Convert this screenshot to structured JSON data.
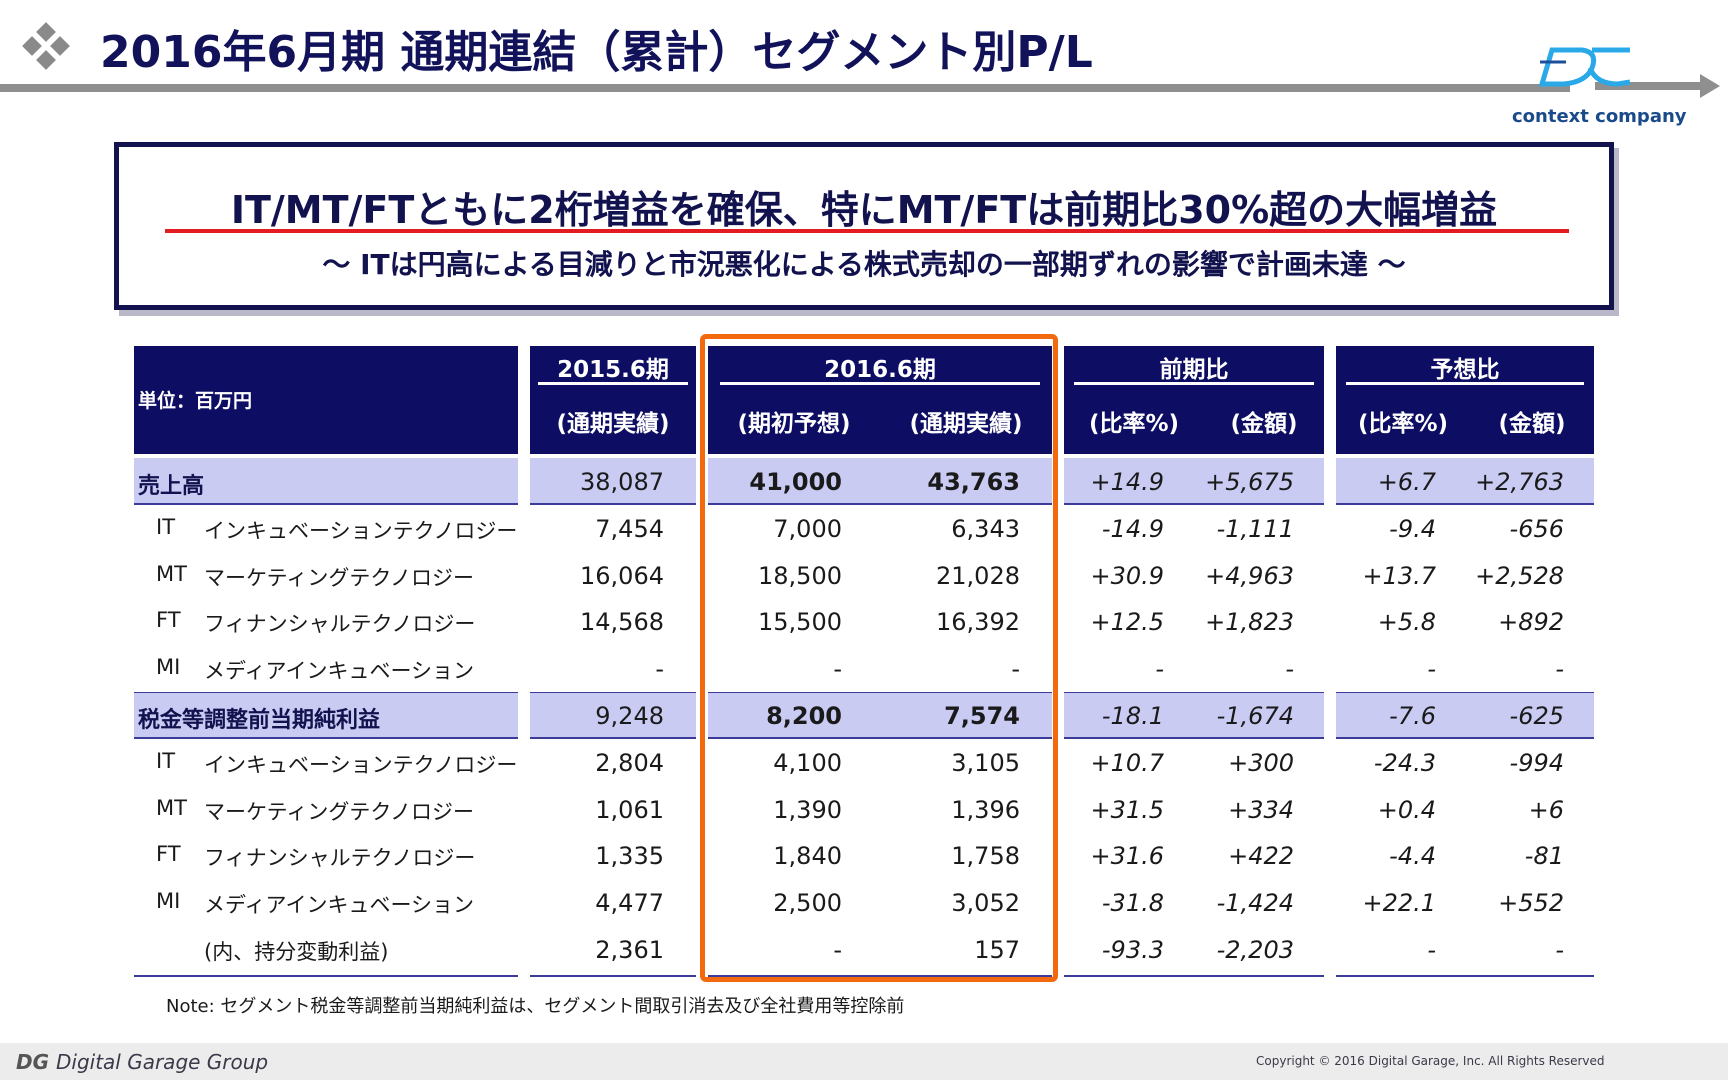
{
  "title": "2016年6月期 通期連結（累計）セグメント別P/L",
  "logo": {
    "text": "context company",
    "icon": "dg-logo-icon"
  },
  "headline": {
    "main": "IT/MT/FTともに2桁増益を確保、特にMT/FTは前期比30%超の大幅増益",
    "sub": "～ ITは円高による目減りと市況悪化による株式売却の一部期ずれの影響で計画未達 ～"
  },
  "table": {
    "unit_label": "単位：百万円",
    "groups": {
      "fy2015": "2015.6期",
      "fy2016": "2016.6期",
      "yoy": "前期比",
      "vs_forecast": "予想比"
    },
    "subheaders": {
      "fy2015_actual": "(通期実績)",
      "fy2016_forecast": "(期初予想)",
      "fy2016_actual": "(通期実績)",
      "yoy_rate": "(比率%)",
      "yoy_amount": "(金額)",
      "fc_rate": "(比率%)",
      "fc_amount": "(金額)"
    },
    "rows": [
      {
        "code": "",
        "label": "売上高",
        "fy2015": "38,087",
        "forecast": "41,000",
        "actual": "43,763",
        "yoy_rate": "+14.9",
        "yoy_amt": "+5,675",
        "fc_rate": "+6.7",
        "fc_amt": "+2,763",
        "total": true
      },
      {
        "code": "IT",
        "label": "インキュベーションテクノロジー",
        "fy2015": "7,454",
        "forecast": "7,000",
        "actual": "6,343",
        "yoy_rate": "-14.9",
        "yoy_amt": "-1,111",
        "fc_rate": "-9.4",
        "fc_amt": "-656"
      },
      {
        "code": "MT",
        "label": "マーケティングテクノロジー",
        "fy2015": "16,064",
        "forecast": "18,500",
        "actual": "21,028",
        "yoy_rate": "+30.9",
        "yoy_amt": "+4,963",
        "fc_rate": "+13.7",
        "fc_amt": "+2,528"
      },
      {
        "code": "FT",
        "label": "フィナンシャルテクノロジー",
        "fy2015": "14,568",
        "forecast": "15,500",
        "actual": "16,392",
        "yoy_rate": "+12.5",
        "yoy_amt": "+1,823",
        "fc_rate": "+5.8",
        "fc_amt": "+892"
      },
      {
        "code": "MI",
        "label": "メディアインキュベーション",
        "fy2015": "-",
        "forecast": "-",
        "actual": "-",
        "yoy_rate": "-",
        "yoy_amt": "-",
        "fc_rate": "-",
        "fc_amt": "-"
      },
      {
        "code": "",
        "label": "税金等調整前当期純利益",
        "fy2015": "9,248",
        "forecast": "8,200",
        "actual": "7,574",
        "yoy_rate": "-18.1",
        "yoy_amt": "-1,674",
        "fc_rate": "-7.6",
        "fc_amt": "-625",
        "total": true
      },
      {
        "code": "IT",
        "label": "インキュベーションテクノロジー",
        "fy2015": "2,804",
        "forecast": "4,100",
        "actual": "3,105",
        "yoy_rate": "+10.7",
        "yoy_amt": "+300",
        "fc_rate": "-24.3",
        "fc_amt": "-994"
      },
      {
        "code": "MT",
        "label": "マーケティングテクノロジー",
        "fy2015": "1,061",
        "forecast": "1,390",
        "actual": "1,396",
        "yoy_rate": "+31.5",
        "yoy_amt": "+334",
        "fc_rate": "+0.4",
        "fc_amt": "+6"
      },
      {
        "code": "FT",
        "label": "フィナンシャルテクノロジー",
        "fy2015": "1,335",
        "forecast": "1,840",
        "actual": "1,758",
        "yoy_rate": "+31.6",
        "yoy_amt": "+422",
        "fc_rate": "-4.4",
        "fc_amt": "-81"
      },
      {
        "code": "MI",
        "label": "メディアインキュベーション",
        "fy2015": "4,477",
        "forecast": "2,500",
        "actual": "3,052",
        "yoy_rate": "-31.8",
        "yoy_amt": "-1,424",
        "fc_rate": "+22.1",
        "fc_amt": "+552"
      },
      {
        "code": "",
        "label": "(内、持分変動利益)",
        "fy2015": "2,361",
        "forecast": "-",
        "actual": "157",
        "yoy_rate": "-93.3",
        "yoy_amt": "-2,203",
        "fc_rate": "-",
        "fc_amt": "-"
      }
    ]
  },
  "note": "Note: セグメント税金等調整前当期純利益は、セグメント間取引消去及び全社費用等控除前",
  "footer": {
    "group_name": "Digital Garage Group",
    "copyright": "Copyright © 2016 Digital Garage, Inc. All Rights Reserved"
  },
  "colors": {
    "header_navy": "#0d0d63",
    "total_band": "#c9cbf3",
    "highlight_orange": "#f36a0e",
    "underline_red": "#e31b23"
  }
}
